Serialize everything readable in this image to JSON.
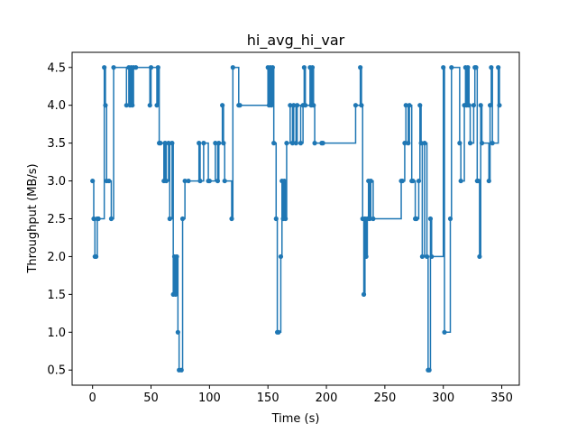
{
  "chart_data": {
    "type": "line",
    "title": "hi_avg_hi_var",
    "xlabel": "Time (s)",
    "ylabel": "Throughput (MB/s)",
    "xlim": [
      -17.5,
      365
    ],
    "ylim": [
      0.3,
      4.7
    ],
    "xticks": [
      0,
      50,
      100,
      150,
      200,
      250,
      300,
      350
    ],
    "yticks": [
      0.5,
      1.0,
      1.5,
      2.0,
      2.5,
      3.0,
      3.5,
      4.0,
      4.5
    ],
    "xtick_labels": [
      "0",
      "50",
      "100",
      "150",
      "200",
      "250",
      "300",
      "350"
    ],
    "ytick_labels": [
      "0.5",
      "1.0",
      "1.5",
      "2.0",
      "2.5",
      "3.0",
      "3.5",
      "4.0",
      "4.5"
    ],
    "step": "post",
    "color": "#1f77b4",
    "grid": false,
    "series": [
      {
        "x": [
          0,
          1,
          2,
          3,
          4,
          5,
          10,
          11,
          12,
          14,
          16,
          18,
          29,
          31,
          32,
          33,
          34,
          35,
          37,
          49,
          50,
          55,
          56,
          57,
          58,
          61,
          62,
          63,
          65,
          66,
          68,
          69,
          70,
          71,
          72,
          73,
          74,
          76,
          77,
          79,
          82,
          91,
          92,
          95,
          99,
          100,
          105,
          107,
          108,
          111,
          112,
          113,
          119,
          120,
          125,
          126,
          150,
          151,
          152,
          153,
          154,
          155,
          157,
          158,
          159,
          161,
          162,
          163,
          164,
          165,
          166,
          169,
          171,
          172,
          174,
          175,
          178,
          180,
          181,
          182,
          186,
          187,
          188,
          189,
          190,
          196,
          197,
          225,
          229,
          230,
          231,
          232,
          233,
          234,
          235,
          236,
          237,
          238,
          240,
          264,
          265,
          267,
          268,
          270,
          271,
          273,
          274,
          276,
          277,
          279,
          280,
          281,
          282,
          284,
          286,
          287,
          288,
          289,
          290,
          300,
          301,
          306,
          307,
          314,
          315,
          318,
          319,
          320,
          321,
          322,
          323,
          326,
          327,
          328,
          329,
          330,
          331,
          332,
          333,
          339,
          340,
          341,
          342,
          347,
          348
        ],
        "y": [
          3.0,
          2.5,
          2.0,
          2.0,
          2.5,
          2.5,
          4.5,
          4.0,
          3.0,
          3.0,
          2.5,
          4.5,
          4.0,
          4.5,
          4.0,
          4.5,
          4.0,
          4.5,
          4.5,
          4.0,
          4.5,
          4.0,
          4.5,
          3.5,
          3.5,
          3.0,
          3.5,
          3.0,
          3.5,
          2.5,
          3.5,
          1.5,
          2.0,
          1.5,
          2.0,
          1.0,
          0.5,
          0.5,
          2.5,
          3.0,
          3.0,
          3.5,
          3.0,
          3.5,
          3.0,
          3.0,
          3.5,
          3.0,
          3.5,
          4.0,
          3.5,
          3.0,
          2.5,
          4.5,
          4.0,
          4.0,
          4.5,
          4.0,
          4.5,
          4.0,
          4.5,
          3.5,
          2.5,
          1.0,
          1.0,
          2.0,
          3.0,
          2.5,
          3.0,
          2.5,
          3.5,
          4.0,
          3.5,
          4.0,
          3.5,
          4.0,
          3.5,
          4.0,
          4.5,
          4.0,
          4.5,
          4.0,
          4.5,
          4.0,
          3.5,
          3.5,
          3.5,
          4.0,
          4.5,
          4.0,
          2.5,
          1.5,
          2.5,
          2.0,
          2.5,
          3.0,
          2.5,
          3.0,
          2.5,
          3.0,
          3.0,
          3.5,
          4.0,
          3.5,
          4.0,
          3.0,
          3.0,
          2.5,
          2.5,
          3.0,
          4.0,
          3.5,
          2.0,
          3.5,
          2.0,
          0.5,
          0.5,
          2.5,
          2.0,
          4.5,
          1.0,
          2.5,
          4.5,
          3.5,
          3.0,
          4.0,
          4.5,
          4.0,
          4.5,
          4.0,
          3.5,
          4.0,
          4.5,
          4.5,
          3.0,
          3.0,
          2.0,
          4.0,
          3.5,
          3.0,
          4.0,
          4.5,
          3.5,
          4.5,
          4.0
        ]
      }
    ]
  }
}
